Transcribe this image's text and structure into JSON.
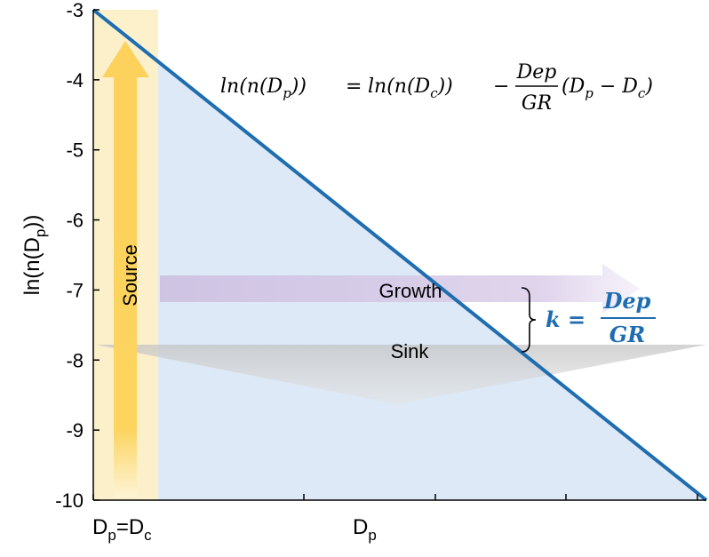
{
  "title": "",
  "y_axis": {
    "label_main": "ln(n(D",
    "label_sub": "p",
    "label_end": "))",
    "ticks": [
      "-3",
      "-4",
      "-5",
      "-6",
      "-7",
      "-8",
      "-9",
      "-10"
    ],
    "range": [
      -10,
      -3
    ]
  },
  "x_axis": {
    "left_label_main": "D",
    "left_label_sub": "p",
    "left_label_mid": "=D",
    "left_label_sub2": "c",
    "center_label_main": "D",
    "center_label_sub": "p"
  },
  "equation": {
    "lhs": "ln(n(D",
    "lhs_sub": "p",
    "lhs_end": "))",
    "eq": "=",
    "rhs1": "ln(n(D",
    "rhs1_sub": "c",
    "rhs1_end": "))",
    "minus": "−",
    "frac_num": "Dep",
    "frac_den": "GR",
    "paren_open": "(D",
    "paren_sub_p": "p",
    "paren_mid": " − D",
    "paren_sub_c": "c",
    "paren_close": ")"
  },
  "labels": {
    "source": "Source",
    "growth": "Growth",
    "sink": "Sink"
  },
  "k_equation": {
    "lhs": "k =",
    "num": "Dep",
    "den": "GR"
  },
  "colors": {
    "line": "#1f6db1",
    "triangle_fill": "#dde9f6",
    "source_band": "#fdf0c8",
    "source_arrow": "#fcd15c",
    "growth_arrow": "#d9cbe6",
    "sink_arrow": "#d0d0d0",
    "k_text": "#1f6db1"
  }
}
